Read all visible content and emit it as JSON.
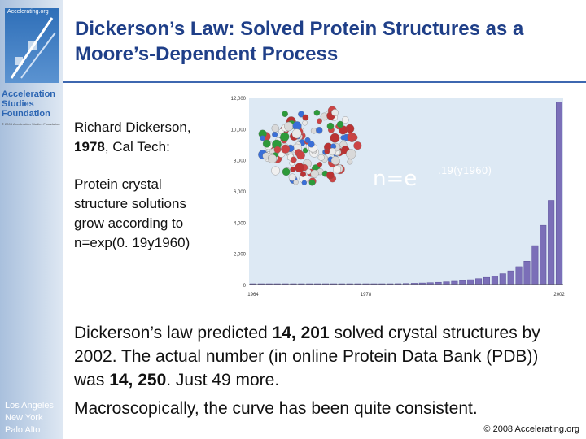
{
  "sidebar": {
    "logo_url": "Accelerating.org",
    "org_name": "Acceleration\nStudies\nFoundation",
    "org_tagline": "© 2008 Acceleration Studies Foundation",
    "cities": "Los Angeles\nNew York\nPalo Alto"
  },
  "slide": {
    "title": "Dickerson’s Law: Solved Protein Structures as a Moore’s-Dependent Process",
    "para1_prefix": "Richard Dickerson, ",
    "para1_year": "1978",
    "para1_suffix": ", Cal Tech:",
    "para2": "Protein crystal structure solutions grow according to n=exp(0. 19y1960)",
    "para3_a": "Dickerson’s law predicted ",
    "para3_pred": "14, 201",
    "para3_b": " solved crystal structures by 2002. The actual number (in online Protein Data Bank (PDB)) was ",
    "para3_actual": "14, 250",
    "para3_c": ". Just 49 more.",
    "para4": "Macroscopically, the curve has been quite consistent.",
    "copyright": "© 2008 Accelerating.org"
  },
  "chart_data": {
    "type": "bar",
    "formula_base": "n=e",
    "formula_exp": ".19(y1960)",
    "y_ticks": [
      "0",
      "2,000",
      "4,000",
      "6,000",
      "8,000",
      "10,000",
      "12,000"
    ],
    "x_tick_labels": [
      "1964",
      "1978",
      "2002"
    ],
    "xlabel": "",
    "ylim": [
      0,
      12000
    ],
    "colors": {
      "bar": "#7b6fb8",
      "plot_bg": "#dde9f4",
      "bar_edge": "#5a4f98"
    },
    "categories": [
      "1964",
      "1965",
      "1966",
      "1967",
      "1968",
      "1969",
      "1970",
      "1971",
      "1972",
      "1973",
      "1974",
      "1975",
      "1976",
      "1977",
      "1978",
      "1979",
      "1980",
      "1981",
      "1982",
      "1983",
      "1984",
      "1985",
      "1986",
      "1987",
      "1988",
      "1989",
      "1990",
      "1991",
      "1992",
      "1993",
      "1994",
      "1995",
      "1996",
      "1997",
      "1998",
      "1999",
      "2000",
      "2001",
      "2002"
    ],
    "values": [
      2,
      2,
      3,
      3,
      4,
      5,
      6,
      7,
      8,
      10,
      12,
      15,
      18,
      22,
      26,
      32,
      38,
      46,
      56,
      68,
      82,
      100,
      120,
      145,
      175,
      210,
      255,
      310,
      380,
      460,
      560,
      700,
      880,
      1150,
      1500,
      2500,
      3800,
      5400,
      11700
    ]
  }
}
